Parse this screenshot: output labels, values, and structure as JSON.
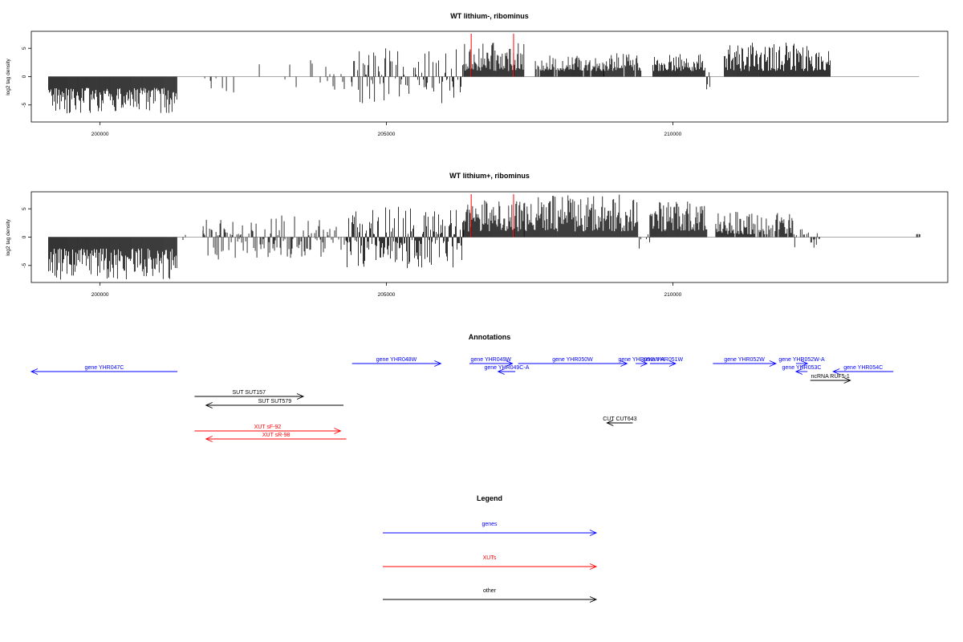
{
  "colors": {
    "genes": "#0000ff",
    "xuts": "#ff0000",
    "other": "#000000",
    "baseline": "#aaaaaa",
    "highlight": "#ff0000"
  },
  "chart_data": [
    {
      "type": "bar",
      "title": "WT lithium-, ribominus",
      "ylabel": "log2 tag density",
      "xlim": [
        198800,
        214800
      ],
      "ylim": [
        -8,
        8
      ],
      "x_ticks": [
        200000,
        205000,
        210000
      ],
      "y_ticks": [
        -5,
        0,
        5
      ],
      "highlight_x": [
        206480,
        207220
      ],
      "segments": [
        {
          "start": 199100,
          "end": 201350,
          "mode": "neg",
          "min": 2.0,
          "max": 6.5,
          "density": 1
        },
        {
          "start": 201800,
          "end": 203900,
          "mode": "sparse",
          "min": 0.3,
          "max": 3.0,
          "density": 0.1
        },
        {
          "start": 203900,
          "end": 204400,
          "mode": "mixed",
          "min": 0.3,
          "max": 2.5,
          "density": 0.3
        },
        {
          "start": 204400,
          "end": 206350,
          "mode": "mixed",
          "min": 0.3,
          "max": 5.0,
          "density": 0.55
        },
        {
          "start": 206350,
          "end": 207400,
          "mode": "pos",
          "min": 1.0,
          "max": 6.0,
          "density": 1
        },
        {
          "start": 207600,
          "end": 208800,
          "mode": "pos",
          "min": 1.0,
          "max": 3.8,
          "density": 0.9
        },
        {
          "start": 208800,
          "end": 209450,
          "mode": "pos",
          "min": 1.0,
          "max": 4.2,
          "density": 0.9
        },
        {
          "start": 209650,
          "end": 210550,
          "mode": "pos",
          "min": 1.0,
          "max": 4.0,
          "density": 1
        },
        {
          "start": 210550,
          "end": 210750,
          "mode": "mixed",
          "min": 0.5,
          "max": 2.5,
          "density": 0.4
        },
        {
          "start": 210900,
          "end": 212750,
          "mode": "pos",
          "min": 1.0,
          "max": 6.0,
          "density": 1
        }
      ]
    },
    {
      "type": "bar",
      "title": "WT lithium+, ribominus",
      "ylabel": "log2 tag density",
      "xlim": [
        198800,
        214800
      ],
      "ylim": [
        -8,
        8
      ],
      "x_ticks": [
        200000,
        205000,
        210000
      ],
      "y_ticks": [
        -5,
        0,
        5
      ],
      "highlight_x": [
        206480,
        207220
      ],
      "segments": [
        {
          "start": 199100,
          "end": 201350,
          "mode": "neg",
          "min": 2.0,
          "max": 7.5,
          "density": 1
        },
        {
          "start": 201350,
          "end": 201800,
          "mode": "sparse",
          "min": 0.3,
          "max": 1.5,
          "density": 0.15
        },
        {
          "start": 201800,
          "end": 203900,
          "mode": "mixed",
          "min": 0.3,
          "max": 4.0,
          "density": 0.7
        },
        {
          "start": 203900,
          "end": 204300,
          "mode": "mixed",
          "min": 0.3,
          "max": 2.5,
          "density": 0.5
        },
        {
          "start": 204300,
          "end": 206350,
          "mode": "mixed",
          "min": 0.5,
          "max": 5.5,
          "density": 1
        },
        {
          "start": 206350,
          "end": 207400,
          "mode": "pos",
          "min": 1.0,
          "max": 6.5,
          "density": 1
        },
        {
          "start": 207400,
          "end": 209400,
          "mode": "pos",
          "min": 1.0,
          "max": 7.5,
          "density": 1
        },
        {
          "start": 209400,
          "end": 209600,
          "mode": "mixed",
          "min": 0.3,
          "max": 2.5,
          "density": 0.3
        },
        {
          "start": 209600,
          "end": 210600,
          "mode": "pos",
          "min": 1.0,
          "max": 6.5,
          "density": 1
        },
        {
          "start": 210750,
          "end": 212100,
          "mode": "pos",
          "min": 0.5,
          "max": 4.5,
          "density": 0.9
        },
        {
          "start": 212100,
          "end": 212600,
          "mode": "mixed",
          "min": 0.3,
          "max": 2.0,
          "density": 0.5
        },
        {
          "start": 214200,
          "end": 214350,
          "mode": "sparse",
          "min": 0.5,
          "max": 1.0,
          "density": 0.3
        }
      ]
    }
  ],
  "annotations": {
    "title": "Annotations",
    "xlim": [
      198800,
      214800
    ],
    "features": [
      {
        "label": "gene YHR047C",
        "category": "genes",
        "start": 198800,
        "end": 201350,
        "strand": "-",
        "row": 1
      },
      {
        "label": "gene YHR048W",
        "category": "genes",
        "start": 204400,
        "end": 205950,
        "strand": "+",
        "row": 0
      },
      {
        "label": "gene YHR049W",
        "category": "genes",
        "start": 206450,
        "end": 207200,
        "strand": "+",
        "row": 0
      },
      {
        "label": "gene YHR049C-A",
        "category": "genes",
        "start": 206950,
        "end": 207250,
        "strand": "-",
        "row": 1
      },
      {
        "label": "gene YHR050W",
        "category": "genes",
        "start": 207300,
        "end": 209200,
        "strand": "+",
        "row": 0
      },
      {
        "label": "gene YHR050W-A",
        "category": "genes",
        "start": 209350,
        "end": 209550,
        "strand": "+",
        "row": 0
      },
      {
        "label": "gene YHR051W",
        "category": "genes",
        "start": 209600,
        "end": 210050,
        "strand": "+",
        "row": 0
      },
      {
        "label": "gene YHR052W",
        "category": "genes",
        "start": 210700,
        "end": 211800,
        "strand": "+",
        "row": 0
      },
      {
        "label": "gene YHR052W-A",
        "category": "genes",
        "start": 212150,
        "end": 212350,
        "strand": "+",
        "row": 0
      },
      {
        "label": "gene YHR053C",
        "category": "genes",
        "start": 212150,
        "end": 212350,
        "strand": "-",
        "row": 1
      },
      {
        "label": "gene YHR054C",
        "category": "genes",
        "start": 212800,
        "end": 213850,
        "strand": "-",
        "row": 1
      },
      {
        "label": "ncRNA RUF5-1",
        "category": "other",
        "start": 212400,
        "end": 213100,
        "strand": "+",
        "row": 2
      },
      {
        "label": "SUT SUT157",
        "category": "other",
        "start": 201650,
        "end": 203550,
        "strand": "+",
        "row": 3
      },
      {
        "label": "SUT SUT579",
        "category": "other",
        "start": 201850,
        "end": 204250,
        "strand": "-",
        "row": 4
      },
      {
        "label": "CUT CUT643",
        "category": "other",
        "start": 208850,
        "end": 209300,
        "strand": "-",
        "row": 5
      },
      {
        "label": "XUT sF-92",
        "category": "xuts",
        "start": 201650,
        "end": 204200,
        "strand": "+",
        "row": 6
      },
      {
        "label": "XUT sR-98",
        "category": "xuts",
        "start": 201850,
        "end": 204300,
        "strand": "-",
        "row": 7
      }
    ]
  },
  "legend": {
    "title": "Legend",
    "items": [
      {
        "label": "genes",
        "category": "genes"
      },
      {
        "label": "XUTs",
        "category": "xuts"
      },
      {
        "label": "other",
        "category": "other"
      }
    ]
  }
}
